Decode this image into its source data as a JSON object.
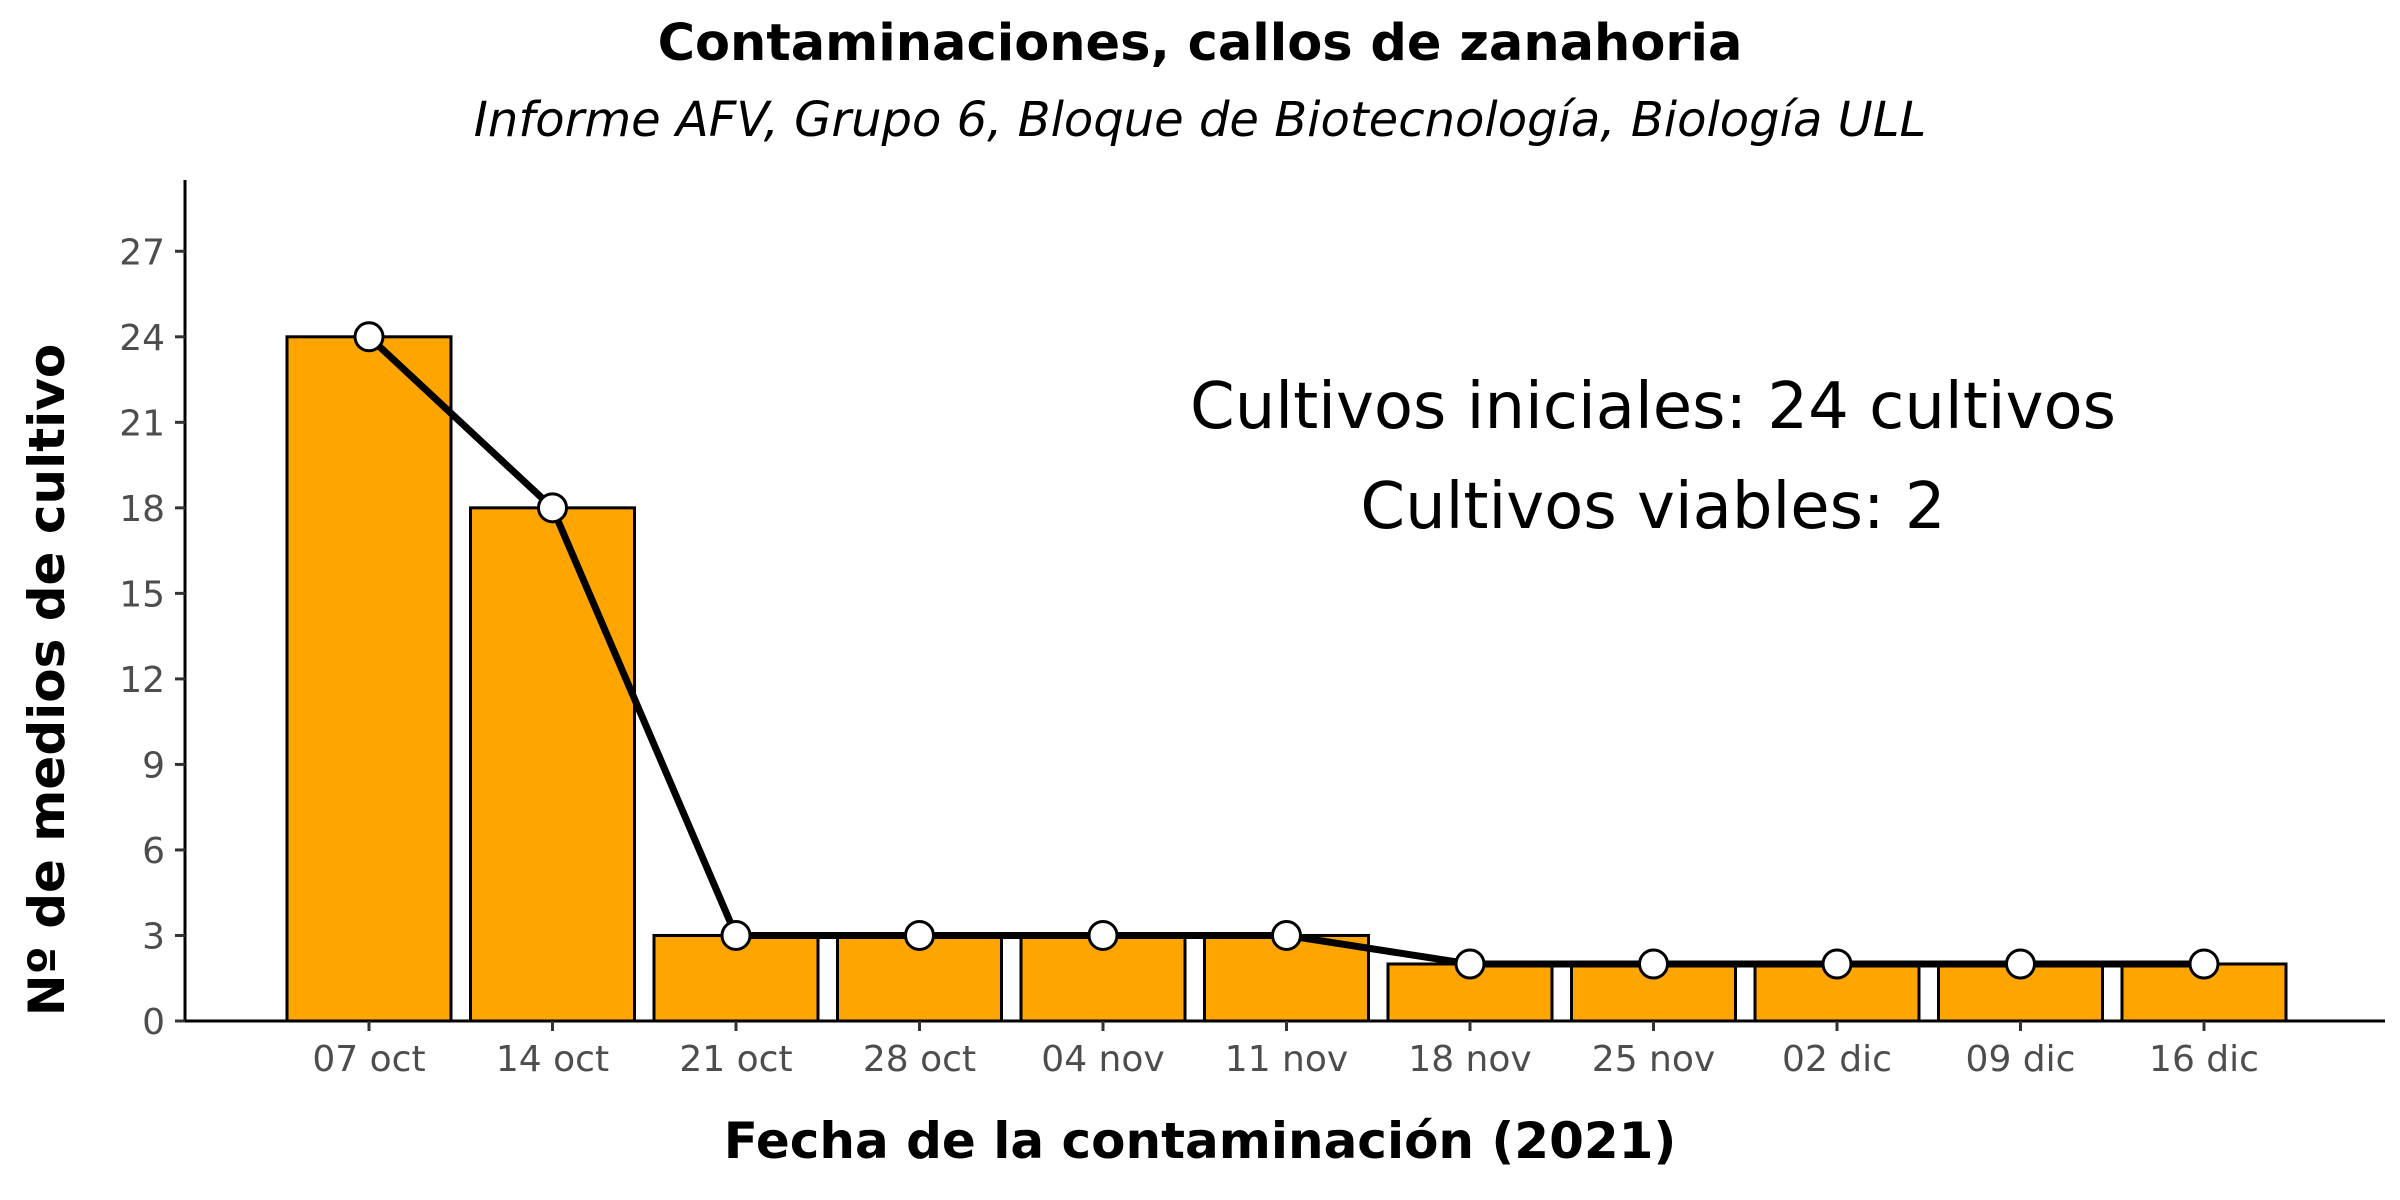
{
  "chart_data": {
    "type": "bar",
    "title": "Contaminaciones, callos de zanahoria",
    "subtitle": "Informe AFV, Grupo 6, Bloque de Biotecnología, Biología ULL",
    "xlabel": "Fecha de la contaminación (2021)",
    "ylabel": "Nº de medios de cultivo",
    "categories": [
      "07 oct",
      "14 oct",
      "21 oct",
      "28 oct",
      "04 nov",
      "11 nov",
      "18 nov",
      "25 nov",
      "02 dic",
      "09 dic",
      "16 dic"
    ],
    "values": [
      24,
      18,
      3,
      3,
      3,
      3,
      2,
      2,
      2,
      2,
      2
    ],
    "overlay": "line with circle markers at the same values",
    "ylim": [
      0,
      29.5
    ],
    "yticks": [
      0,
      3,
      6,
      9,
      12,
      15,
      18,
      21,
      24,
      27
    ],
    "annotations": [
      "Cultivos iniciales: 24 cultivos",
      "Cultivos viables: 2"
    ],
    "grid": false,
    "colors": {
      "bar_fill": "#FFA500",
      "bar_stroke": "#000000",
      "line": "#000000",
      "marker_fill": "#FFFFFF",
      "tick_label": "#4D4D4D"
    }
  }
}
